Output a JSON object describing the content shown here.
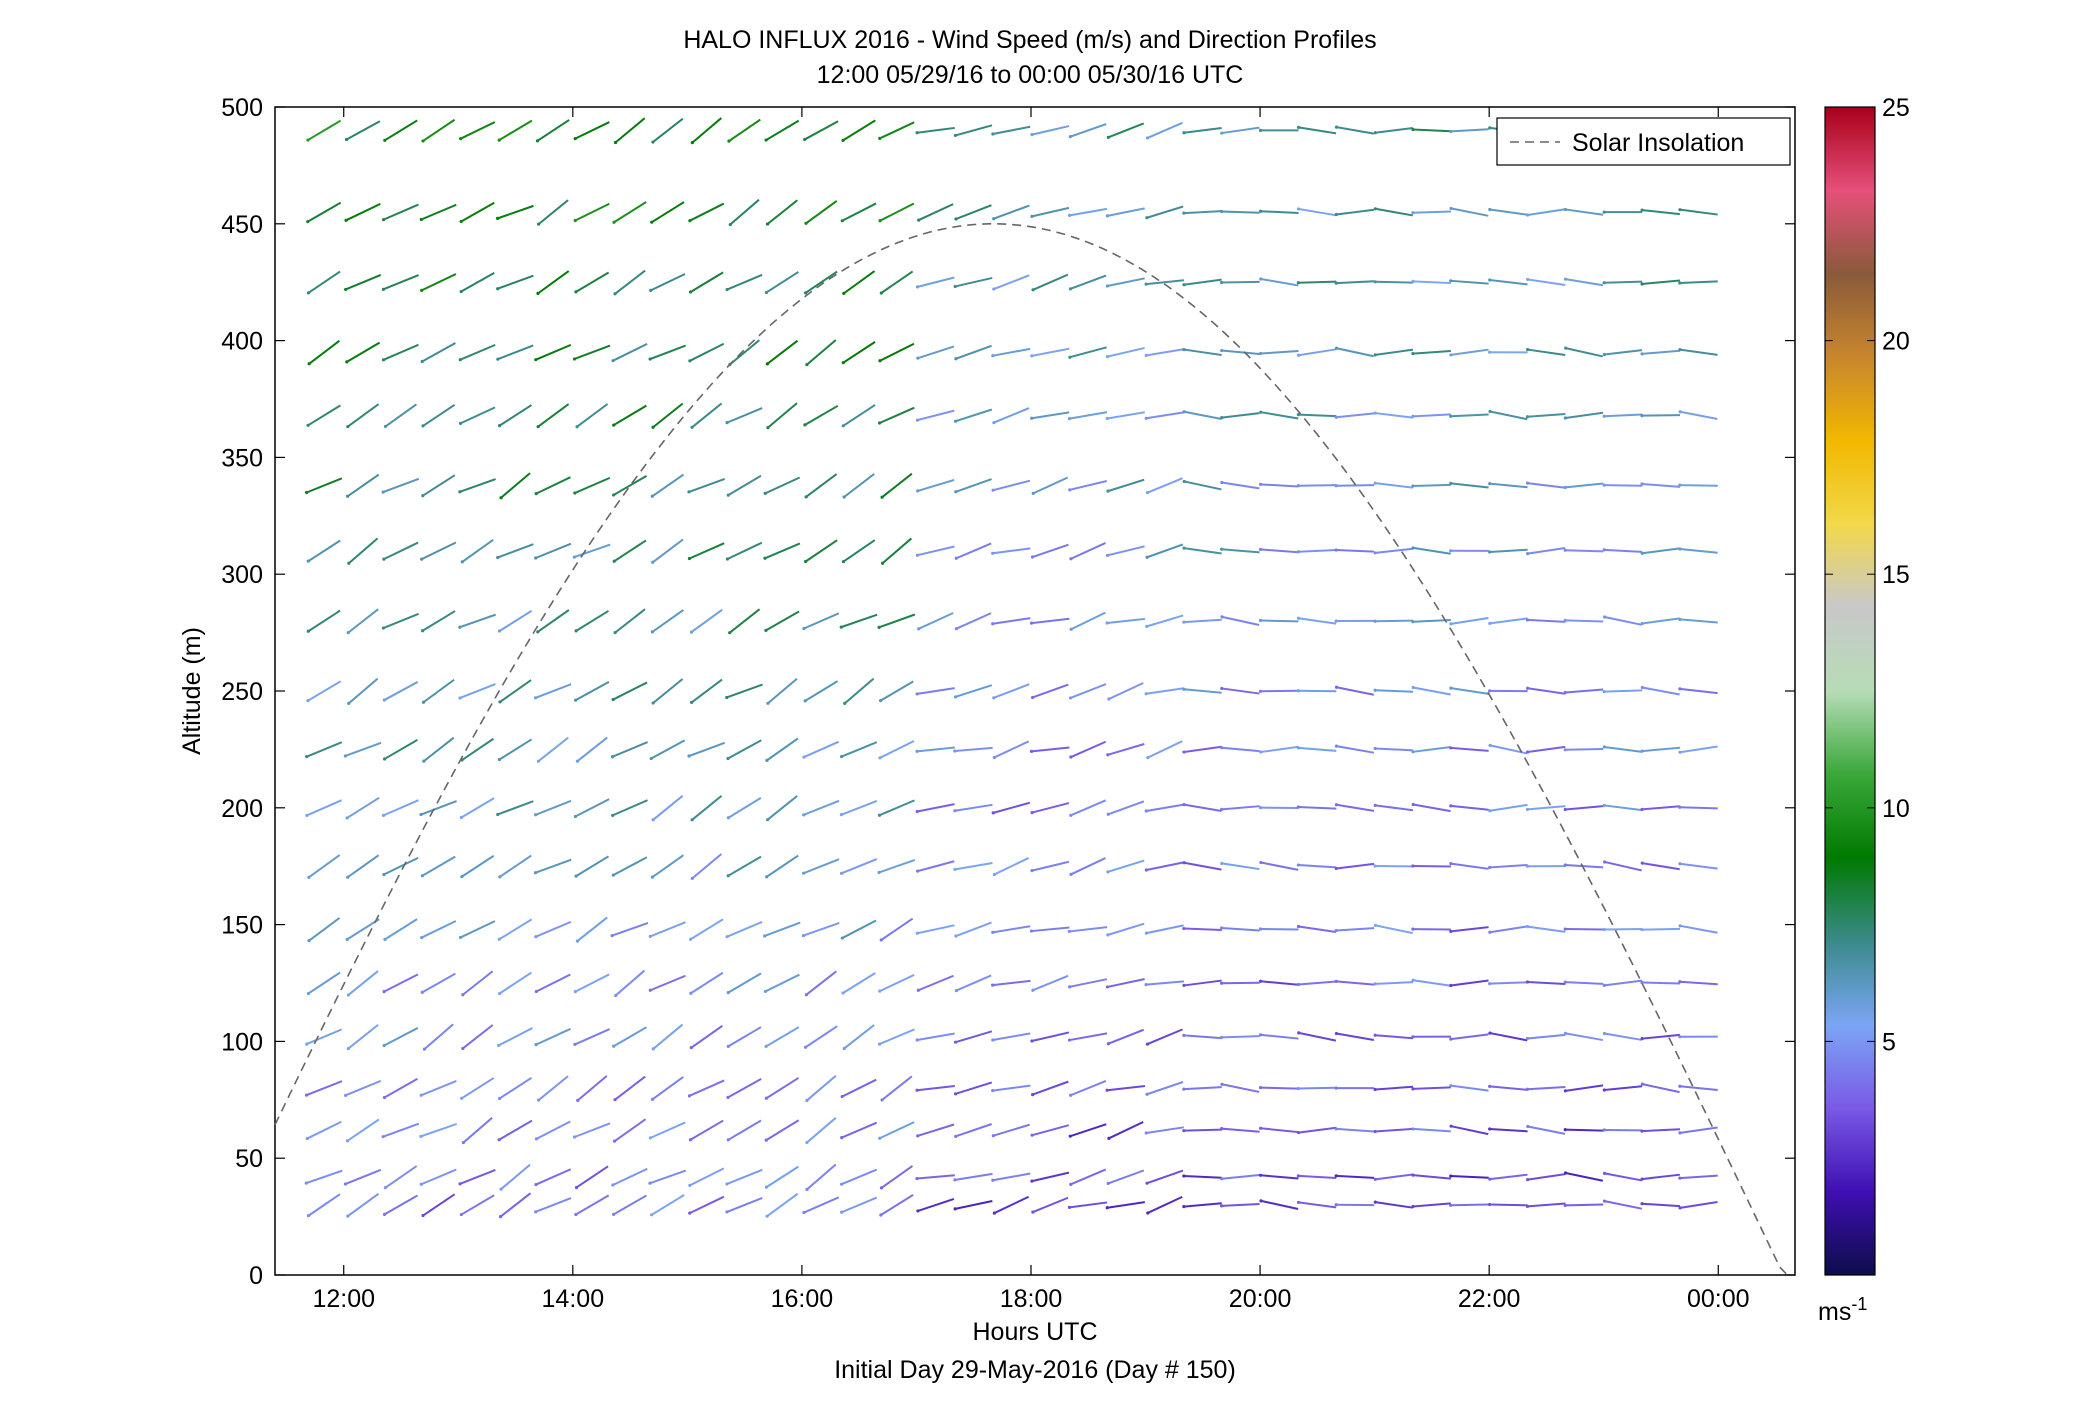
{
  "chart_data": {
    "type": "wind-barb-profile",
    "title": "HALO INFLUX 2016 - Wind Speed (m/s) and Direction Profiles",
    "subtitle": "12:00 05/29/16 to 00:00 05/30/16  UTC",
    "xlabel": "Hours UTC",
    "xlabel2": "Initial Day 29-May-2016 (Day # 150)",
    "ylabel": "Altitude (m)",
    "x_ticks": [
      {
        "value": 12,
        "label": "12:00"
      },
      {
        "value": 14,
        "label": "14:00"
      },
      {
        "value": 16,
        "label": "16:00"
      },
      {
        "value": 18,
        "label": "18:00"
      },
      {
        "value": 20,
        "label": "20:00"
      },
      {
        "value": 22,
        "label": "22:00"
      },
      {
        "value": 24,
        "label": "00:00"
      }
    ],
    "y_ticks": [
      0,
      50,
      100,
      150,
      200,
      250,
      300,
      350,
      400,
      450,
      500
    ],
    "xlim": [
      11.4,
      24.67
    ],
    "ylim": [
      0,
      500
    ],
    "legend": {
      "label": "Solar Insolation",
      "position": "top-right",
      "style": "dashed"
    },
    "colorbar": {
      "range": [
        0,
        25
      ],
      "ticks": [
        5,
        10,
        15,
        20,
        25
      ],
      "unit_label": "ms",
      "unit_exponent": "-1",
      "colors": [
        "#0d0d4a",
        "#3f0fb3",
        "#7a5ae6",
        "#7ba5f5",
        "#3a8a8a",
        "#007a00",
        "#3aa83a",
        "#b6dcb6",
        "#c8c8c8",
        "#f2d84a",
        "#f2b800",
        "#c8862d",
        "#8a5a3a",
        "#e6507a",
        "#a8001a"
      ]
    },
    "solar_insolation_peak": {
      "x": 17.67,
      "y": 450
    },
    "time_columns": [
      11.83,
      12.17,
      12.5,
      12.83,
      13.17,
      13.5,
      13.83,
      14.17,
      14.5,
      14.83,
      15.17,
      15.5,
      15.83,
      16.17,
      16.5,
      16.83,
      17.17,
      17.5,
      17.83,
      18.17,
      18.5,
      18.83,
      19.17,
      19.5,
      19.83,
      20.17,
      20.5,
      20.83,
      21.17,
      21.5,
      21.83,
      22.17,
      22.5,
      22.83,
      23.17,
      23.5,
      23.83
    ],
    "altitude_levels": [
      30,
      42,
      62,
      80,
      102,
      125,
      148,
      175,
      200,
      225,
      250,
      280,
      310,
      338,
      368,
      395,
      425,
      455,
      490
    ],
    "wind_regimes": [
      {
        "from": 11.8,
        "to": 17.0,
        "direction_deg": 240,
        "speed_low": 4,
        "speed_high": 9
      },
      {
        "from": 17.0,
        "to": 19.5,
        "direction_deg": 255,
        "speed_low": 3,
        "speed_high": 7
      },
      {
        "from": 19.5,
        "to": 24.0,
        "direction_deg": 272,
        "speed_low": 3,
        "speed_high": 7
      }
    ]
  }
}
